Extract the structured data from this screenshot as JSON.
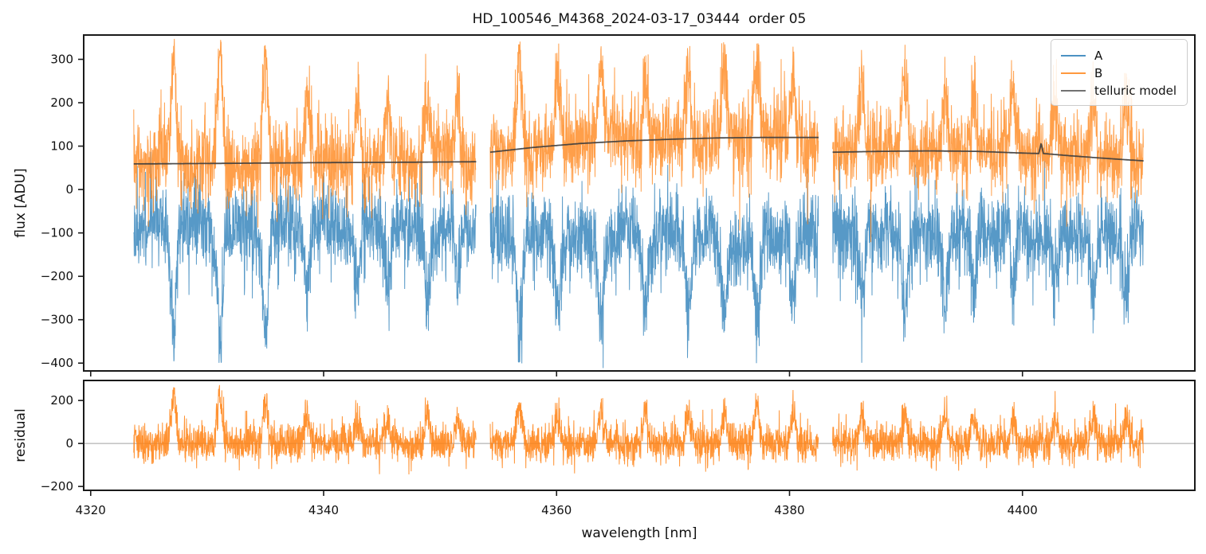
{
  "title": "HD_100546_M4368_2024-03-17_03444  order 05",
  "legend": {
    "entries": [
      {
        "label": "A",
        "color": "#1f77b4"
      },
      {
        "label": "B",
        "color": "#ff7f0e"
      },
      {
        "label": "telluric model",
        "color": "#4d4d4d"
      }
    ]
  },
  "chart_data": {
    "type": "line",
    "title": "HD_100546_M4368_2024-03-17_03444  order 05",
    "xlabel": "wavelength [nm]",
    "xlim": [
      4319.4,
      4414.8
    ],
    "xticks": [
      4320,
      4340,
      4360,
      4380,
      4400
    ],
    "wavelength_segments_nm": [
      [
        4323.7,
        4353.1
      ],
      [
        4354.3,
        4382.5
      ],
      [
        4383.7,
        4410.4
      ]
    ],
    "panels": [
      {
        "name": "flux",
        "ylabel": "flux [ADU]",
        "ylim": [
          -418,
          356
        ],
        "yticks": [
          300,
          200,
          100,
          0,
          -100,
          -200,
          -300,
          -400
        ],
        "series": [
          "A",
          "B",
          "telluric model"
        ]
      },
      {
        "name": "residual",
        "ylabel": "residual",
        "ylim": [
          -218,
          293
        ],
        "yticks": [
          200,
          0,
          -200
        ],
        "series": [
          "residual"
        ],
        "zero_line": true
      }
    ],
    "series_style": {
      "A": {
        "color": "#1f77b4",
        "opacity": 0.75,
        "stroke_width": 1
      },
      "B": {
        "color": "#ff7f0e",
        "opacity": 0.75,
        "stroke_width": 1
      },
      "residual": {
        "color": "#ff7f0e",
        "opacity": 0.85,
        "stroke_width": 1
      },
      "telluric": {
        "color": "#3d3d3d",
        "opacity": 0.9,
        "stroke_width": 1.8
      },
      "zero_line": {
        "color": "#777777",
        "opacity": 0.7,
        "stroke_width": 1
      }
    },
    "telluric_model_anchors": [
      [
        [
          4323.7,
          59
        ],
        [
          4330,
          60
        ],
        [
          4340,
          62
        ],
        [
          4348,
          63
        ],
        [
          4353.1,
          64
        ]
      ],
      [
        [
          4354.3,
          86
        ],
        [
          4358,
          97
        ],
        [
          4362,
          106
        ],
        [
          4366,
          112
        ],
        [
          4370,
          116
        ],
        [
          4374,
          119
        ],
        [
          4378,
          120
        ],
        [
          4382.5,
          120
        ]
      ],
      [
        [
          4383.7,
          86
        ],
        [
          4388,
          88
        ],
        [
          4392,
          89
        ],
        [
          4396,
          88
        ],
        [
          4400,
          84
        ],
        [
          4401.4,
          83
        ],
        [
          4401.6,
          106
        ],
        [
          4401.8,
          83
        ],
        [
          4404,
          78
        ],
        [
          4407,
          72
        ],
        [
          4410.4,
          66
        ]
      ]
    ],
    "sky_emission_lines": [
      [
        4327.1,
        250
      ],
      [
        4331.1,
        265
      ],
      [
        4335.0,
        240
      ],
      [
        4338.6,
        150
      ],
      [
        4342.9,
        140
      ],
      [
        4345.5,
        120
      ],
      [
        4348.9,
        150
      ],
      [
        4351.5,
        130
      ],
      [
        4356.8,
        230
      ],
      [
        4360.1,
        160
      ],
      [
        4363.8,
        170
      ],
      [
        4367.6,
        165
      ],
      [
        4371.3,
        175
      ],
      [
        4374.4,
        160
      ],
      [
        4377.2,
        200
      ],
      [
        4380.3,
        150
      ],
      [
        4386.2,
        150
      ],
      [
        4389.9,
        160
      ],
      [
        4393.4,
        140
      ],
      [
        4395.8,
        150
      ],
      [
        4399.2,
        130
      ],
      [
        4402.8,
        130
      ],
      [
        4406.1,
        140
      ],
      [
        4408.9,
        150
      ]
    ],
    "noise_model": {
      "mean_A_per_segment": [
        -85,
        -110,
        -100
      ],
      "sigma_A": 48,
      "sigma_B": 48,
      "sigma_residual": 45,
      "residual_line_response": 0.85,
      "line_profile_sigma_nm": 0.22,
      "sample_step_nm": 0.02,
      "random_seed": 7
    }
  }
}
